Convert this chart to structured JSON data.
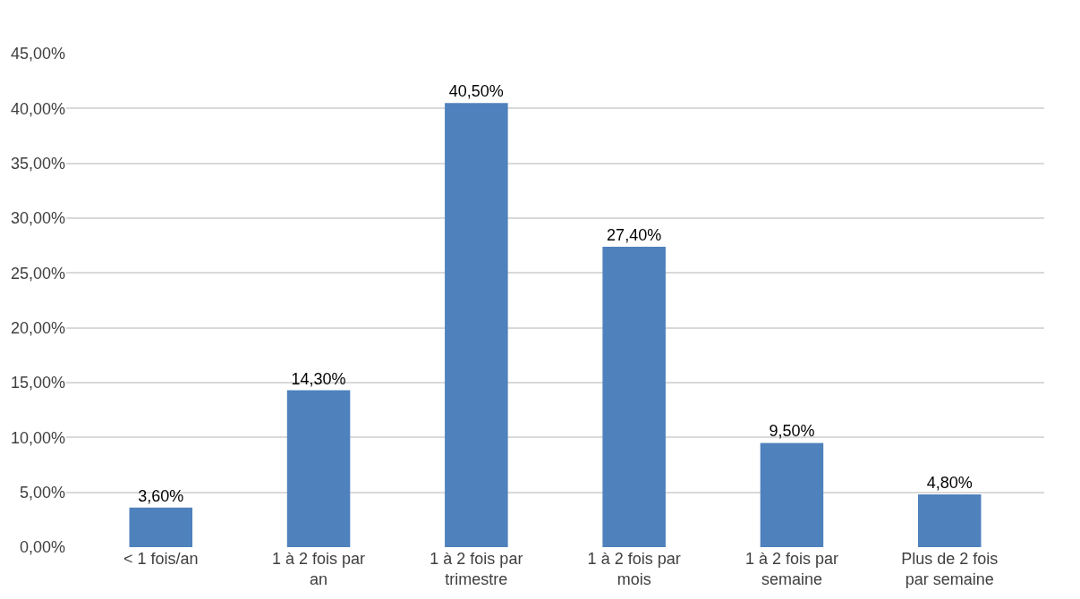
{
  "chart_data": {
    "type": "bar",
    "categories": [
      "< 1 fois/an",
      "1 à 2 fois par an",
      "1 à 2 fois par trimestre",
      "1 à 2 fois par mois",
      "1 à 2 fois par semaine",
      "Plus de 2 fois par semaine"
    ],
    "values": [
      3.6,
      14.3,
      40.5,
      27.4,
      9.5,
      4.8
    ],
    "value_labels": [
      "3,60%",
      "14,30%",
      "40,50%",
      "27,40%",
      "9,50%",
      "4,80%"
    ],
    "color": "#4f81bd",
    "ylim": [
      0,
      45
    ],
    "yticks": [
      {
        "value": 0,
        "label": "0,00%"
      },
      {
        "value": 5,
        "label": "5,00%"
      },
      {
        "value": 10,
        "label": "10,00%"
      },
      {
        "value": 15,
        "label": "15,00%"
      },
      {
        "value": 20,
        "label": "20,00%"
      },
      {
        "value": 25,
        "label": "25,00%"
      },
      {
        "value": 30,
        "label": "30,00%"
      },
      {
        "value": 35,
        "label": "35,00%"
      },
      {
        "value": 40,
        "label": "40,00%"
      },
      {
        "value": 45,
        "label": "45,00%"
      }
    ],
    "grid": "y"
  }
}
